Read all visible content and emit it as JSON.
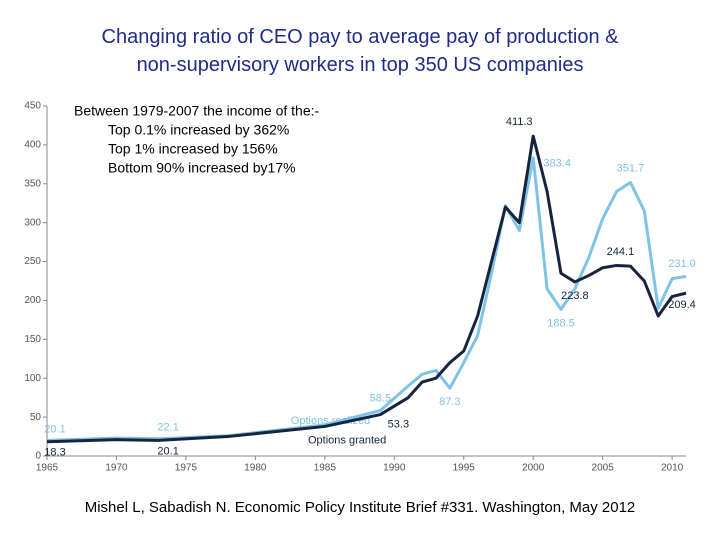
{
  "chart_data": {
    "type": "line",
    "title": "Changing ratio of CEO pay to average pay of production & non-supervisory workers in top 350 US companies",
    "annotation": [
      "Between 1979-2007 the income of the:-",
      "Top 0.1% increased by 362%",
      "Top 1% increased by 156%",
      "Bottom 90% increased by17%"
    ],
    "source": "Mishel L, Sabadish N. Economic Policy Institute Brief  #331.  Washington, May 2012",
    "x": [
      1965,
      1970,
      1973,
      1978,
      1985,
      1989,
      1991,
      1992,
      1993,
      1994,
      1995,
      1996,
      1997,
      1998,
      1999,
      2000,
      2001,
      2002,
      2003,
      2004,
      2005,
      2006,
      2007,
      2008,
      2009,
      2010,
      2011
    ],
    "series": [
      {
        "name": "Options realized",
        "color": "#7fc3e6",
        "values": [
          20.1,
          23,
          22.1,
          26,
          40,
          58.5,
          90,
          105,
          110,
          87.3,
          120,
          155,
          235,
          322,
          290,
          383.4,
          215,
          188.5,
          215,
          255,
          305,
          340,
          351.7,
          315,
          190,
          228,
          231
        ],
        "value_labels": [
          "20.1",
          null,
          "22.1",
          null,
          null,
          "58.5",
          null,
          null,
          null,
          "87.3",
          null,
          null,
          null,
          null,
          null,
          "383.4",
          null,
          "188.5",
          null,
          null,
          null,
          null,
          "351.7",
          null,
          null,
          null,
          "231.0"
        ]
      },
      {
        "name": "Options granted",
        "color": "#16243f",
        "values": [
          18.3,
          21,
          20.1,
          25,
          38,
          53.3,
          75,
          95,
          100,
          120,
          135,
          180,
          250,
          320,
          300,
          411.3,
          340,
          235,
          223.8,
          232,
          242,
          245,
          244.1,
          225,
          180,
          205,
          209.4
        ],
        "value_labels": [
          "18.3",
          null,
          "20.1",
          null,
          null,
          "53.3",
          null,
          null,
          null,
          null,
          null,
          null,
          null,
          null,
          null,
          "411.3",
          null,
          null,
          "223.8",
          null,
          null,
          null,
          "244.1",
          null,
          null,
          null,
          "209.4"
        ]
      }
    ],
    "xlim": [
      1965,
      2011
    ],
    "xticks": [
      1965,
      1970,
      1975,
      1980,
      1985,
      1990,
      1995,
      2000,
      2005,
      2010
    ],
    "ylim": [
      0,
      450
    ],
    "yticks": [
      0,
      50,
      100,
      150,
      200,
      250,
      300,
      350,
      400,
      450
    ]
  }
}
